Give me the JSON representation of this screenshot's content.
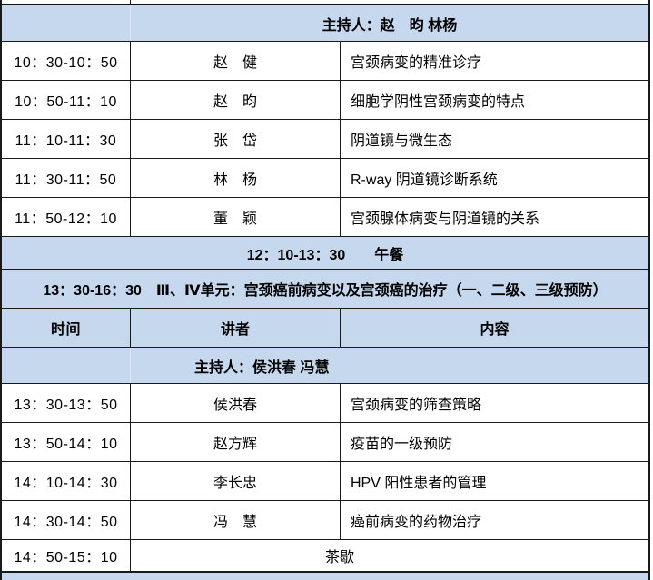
{
  "meta": {
    "accent_fill": "#c6d8ee",
    "border_color": "#1a1a1a",
    "text_color": "#000000"
  },
  "table": {
    "moderator1_label": "主持人：赵　昀 林杨",
    "session1_rows": [
      {
        "time": "10：30-10：50",
        "speaker": "赵　健",
        "topic": "宫颈病变的精准诊疗"
      },
      {
        "time": "10：50-11：10",
        "speaker": "赵　昀",
        "topic": "细胞学阴性宫颈病变的特点"
      },
      {
        "time": "11：10-11：30",
        "speaker": "张　岱",
        "topic": "阴道镜与微生态"
      },
      {
        "time": "11：30-11：50",
        "speaker": "林　杨",
        "topic": "R-way 阴道镜诊断系统"
      },
      {
        "time": "11：50-12：10",
        "speaker": "董　颖",
        "topic": "宫颈腺体病变与阴道镜的关系"
      }
    ],
    "lunch_label": "12：10-13：30　　午餐",
    "unit_label": "13：30-16：30　Ⅲ、Ⅳ单元：宫颈癌前病变以及宫颈癌的治疗（一、二级、三级预防）",
    "columns": {
      "time": "时间",
      "speaker": "讲者",
      "content": "内容"
    },
    "moderator2_label": "主持人：侯洪春 冯慧",
    "session2_rows": [
      {
        "time": "13：30-13：50",
        "speaker": "侯洪春",
        "topic": "宫颈病变的筛查策略"
      },
      {
        "time": "13：50-14：10",
        "speaker": "赵方辉",
        "topic": "疫苗的一级预防"
      },
      {
        "time": "14：10-14：30",
        "speaker": "李长忠",
        "topic": "HPV 阳性患者的管理"
      },
      {
        "time": "14：30-14：50",
        "speaker": "冯　慧",
        "topic": "癌前病变的药物治疗"
      }
    ],
    "tea_row": {
      "time": "14：50-15：10",
      "label": "茶歇"
    }
  }
}
